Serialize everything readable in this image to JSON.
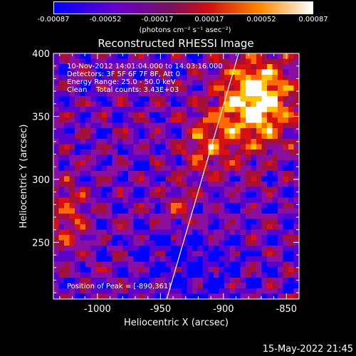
{
  "colorbar": {
    "ticks": [
      "-0.00087",
      "-0.00052",
      "-0.00017",
      "0.00017",
      "0.00052",
      "0.00087"
    ],
    "units": "(photons cm⁻² s⁻¹ asec⁻²)"
  },
  "chart_data": {
    "type": "heatmap",
    "title": "Reconstructed RHESSI Image",
    "xlabel": "Heliocentric X (arcsec)",
    "ylabel": "Heliocentric Y (arcsec)",
    "xlim": [
      -1035,
      -840
    ],
    "ylim": [
      205,
      400
    ],
    "xticks": [
      -1000,
      -950,
      -900,
      -850
    ],
    "xtick_labels": [
      "-1000",
      "-950",
      "-900",
      "-850"
    ],
    "yticks": [
      250,
      300,
      350,
      400
    ],
    "ytick_labels": [
      "250",
      "300",
      "350",
      "400"
    ],
    "colormap": [
      "#0000ff",
      "#5a00cc",
      "#8a0fa0",
      "#a5103a",
      "#d81010",
      "#ff6a00",
      "#ffc400",
      "#ffffff"
    ],
    "limb_line": [
      [
        -945,
        205
      ],
      [
        -888,
        400
      ]
    ],
    "annotations": {
      "line1": "10-Nov-2012 14:01:04.000 to 14:03:16.000",
      "line2": "Detectors: 3F 5F 6F 7F 8F, Att 0",
      "line3": "Energy Range: 25.0 - 50.0 keV",
      "line4": "Clean    Total counts: 3.43E+03",
      "peak": "Position of Peak = [-890,361]"
    }
  },
  "timestamp": "15-May-2022 21:45"
}
